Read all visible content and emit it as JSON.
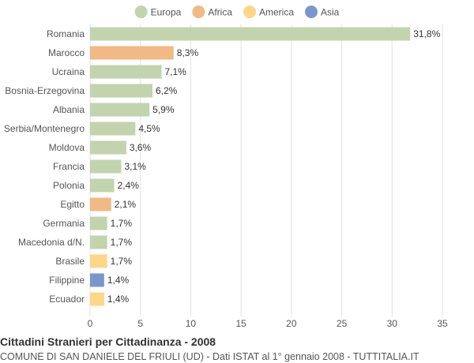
{
  "chart_data": {
    "type": "bar",
    "orientation": "horizontal",
    "title": "Cittadini Stranieri per Cittadinanza - 2008",
    "subtitle": "COMUNE DI SAN DANIELE DEL FRIULI (UD) - Dati ISTAT al 1° gennaio 2008 - TUTTITALIA.IT",
    "legend": {
      "placement": "top-center",
      "entries": [
        {
          "name": "Europa",
          "color": "#c2d3ae"
        },
        {
          "name": "Africa",
          "color": "#f0b985"
        },
        {
          "name": "America",
          "color": "#fdd688"
        },
        {
          "name": "Asia",
          "color": "#7a97cc"
        }
      ]
    },
    "categories": [
      "Romania",
      "Marocco",
      "Ucraina",
      "Bosnia-Erzegovina",
      "Albania",
      "Serbia/Montenegro",
      "Moldova",
      "Francia",
      "Polonia",
      "Egitto",
      "Germania",
      "Macedonia d/N.",
      "Brasile",
      "Filippine",
      "Ecuador"
    ],
    "values": [
      31.8,
      8.3,
      7.1,
      6.2,
      5.9,
      4.5,
      3.6,
      3.1,
      2.4,
      2.1,
      1.7,
      1.7,
      1.7,
      1.4,
      1.4
    ],
    "value_labels": [
      "31,8%",
      "8,3%",
      "7,1%",
      "6,2%",
      "5,9%",
      "4,5%",
      "3,6%",
      "3,1%",
      "2,4%",
      "2,1%",
      "1,7%",
      "1,7%",
      "1,7%",
      "1,4%",
      "1,4%"
    ],
    "continent": [
      "Europa",
      "Africa",
      "Europa",
      "Europa",
      "Europa",
      "Europa",
      "Europa",
      "Europa",
      "Europa",
      "Africa",
      "Europa",
      "Europa",
      "America",
      "Asia",
      "America"
    ],
    "xlim": [
      0,
      35
    ],
    "xticks": [
      0,
      5,
      10,
      15,
      20,
      25,
      30,
      35
    ],
    "grid": true
  }
}
